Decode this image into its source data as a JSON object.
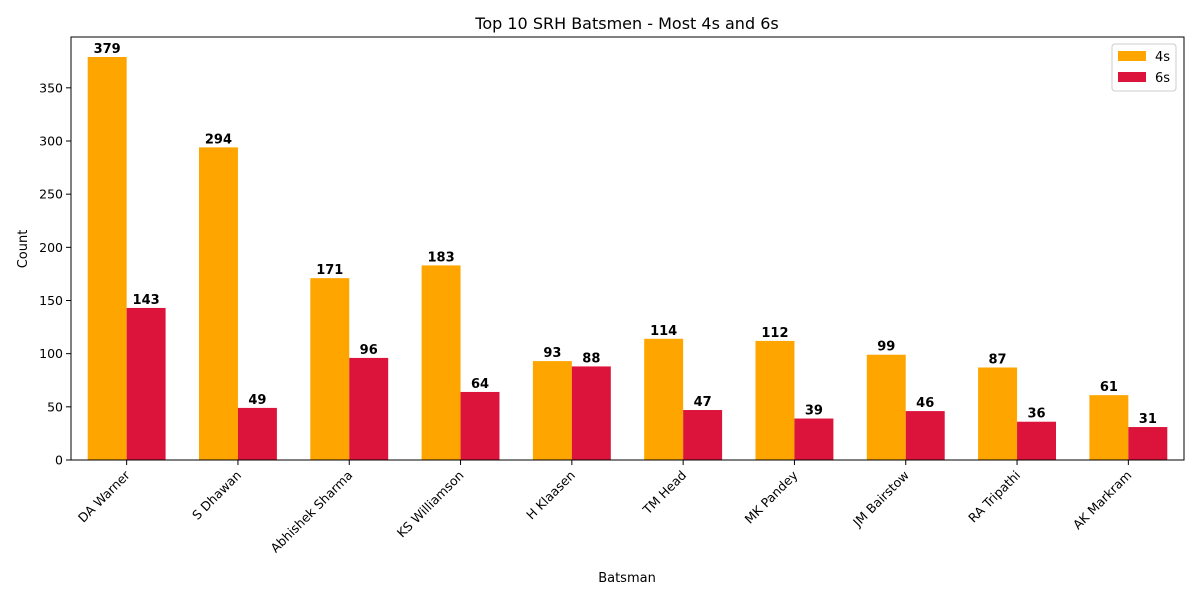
{
  "chart_data": {
    "type": "bar",
    "title": "Top 10 SRH Batsmen - Most 4s and 6s",
    "xlabel": "Batsman",
    "ylabel": "Count",
    "ylim": [
      0,
      397.8
    ],
    "yticks": [
      0,
      50,
      100,
      150,
      200,
      250,
      300,
      350
    ],
    "categories": [
      "DA Warner",
      "S Dhawan",
      "Abhishek Sharma",
      "KS Williamson",
      "H Klaasen",
      "TM Head",
      "MK Pandey",
      "JM Bairstow",
      "RA Tripathi",
      "AK Markram"
    ],
    "series": [
      {
        "name": "4s",
        "color": "#FFA500",
        "values": [
          379,
          294,
          171,
          183,
          93,
          114,
          112,
          99,
          87,
          61
        ]
      },
      {
        "name": "6s",
        "color": "#DC143C",
        "values": [
          143,
          49,
          96,
          64,
          88,
          47,
          39,
          46,
          36,
          31
        ]
      }
    ],
    "legend_position": "top-right",
    "grid": false
  }
}
